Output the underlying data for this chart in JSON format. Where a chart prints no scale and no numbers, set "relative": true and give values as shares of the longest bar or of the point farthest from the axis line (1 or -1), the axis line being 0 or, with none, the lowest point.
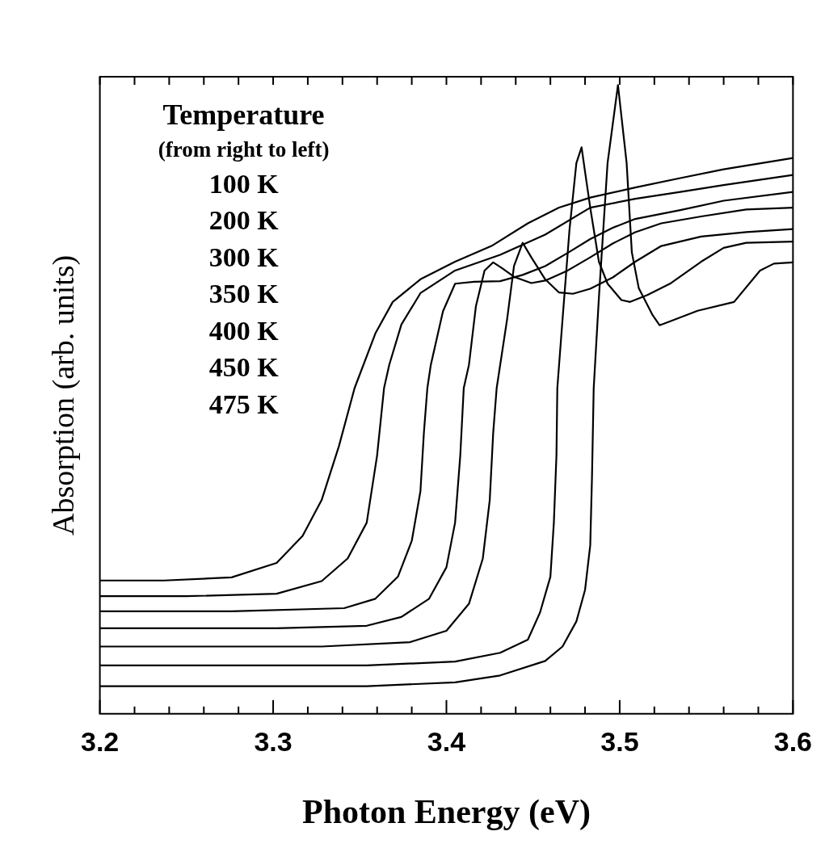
{
  "chart_data": {
    "type": "line",
    "xlabel": "Photon Energy (eV)",
    "ylabel": "Absorption (arb. units)",
    "relative": true,
    "marker": "none",
    "xlim": [
      3.2,
      3.6
    ],
    "xticks": [
      3.2,
      {
        "value": 3.22,
        "label": null
      },
      {
        "value": 3.24,
        "label": null
      },
      {
        "value": 3.26,
        "label": null
      },
      {
        "value": 3.28,
        "label": null
      },
      3.3,
      {
        "value": 3.32,
        "label": null
      },
      {
        "value": 3.34,
        "label": null
      },
      {
        "value": 3.36,
        "label": null
      },
      {
        "value": 3.38,
        "label": null
      },
      3.4,
      {
        "value": 3.42,
        "label": null
      },
      {
        "value": 3.44,
        "label": null
      },
      {
        "value": 3.46,
        "label": null
      },
      {
        "value": 3.48,
        "label": null
      },
      3.5,
      {
        "value": 3.52,
        "label": null
      },
      {
        "value": 3.54,
        "label": null
      },
      {
        "value": 3.56,
        "label": null
      },
      {
        "value": 3.58,
        "label": null
      },
      3.6
    ],
    "annotations": [
      "Temperature",
      "(from right to left)",
      "100 K",
      "200 K",
      "300 K",
      "350 K",
      "400 K",
      "450 K",
      "475 K"
    ],
    "series": [
      {
        "color": "#000000",
        "x": [
          3.2,
          3.354,
          3.405,
          3.431,
          3.457,
          3.467,
          3.475,
          3.48,
          3.483,
          3.484,
          3.485,
          3.488,
          3.493,
          3.499,
          3.504,
          3.507,
          3.511,
          3.519,
          3.523,
          3.528,
          3.545,
          3.566,
          3.581,
          3.589,
          3.6
        ],
        "values": [
          0.044,
          0.044,
          0.05,
          0.061,
          0.084,
          0.107,
          0.147,
          0.197,
          0.268,
          0.375,
          0.518,
          0.662,
          0.876,
          1.0,
          0.876,
          0.734,
          0.677,
          0.634,
          0.618,
          0.623,
          0.641,
          0.655,
          0.705,
          0.716,
          0.718
        ]
      },
      {
        "color": "#000000",
        "x": [
          3.2,
          3.354,
          3.405,
          3.431,
          3.447,
          3.454,
          3.46,
          3.462,
          3.4635,
          3.464,
          3.467,
          3.471,
          3.475,
          3.478,
          3.48,
          3.483,
          3.488,
          3.493,
          3.501,
          3.506,
          3.516,
          3.529,
          3.547,
          3.56,
          3.573,
          3.6
        ],
        "values": [
          0.077,
          0.077,
          0.083,
          0.097,
          0.118,
          0.161,
          0.218,
          0.304,
          0.411,
          0.518,
          0.627,
          0.769,
          0.876,
          0.901,
          0.862,
          0.805,
          0.719,
          0.684,
          0.658,
          0.655,
          0.666,
          0.684,
          0.719,
          0.741,
          0.749,
          0.751
        ]
      },
      {
        "color": "#000000",
        "x": [
          3.2,
          3.328,
          3.379,
          3.4,
          3.413,
          3.421,
          3.425,
          3.427,
          3.429,
          3.435,
          3.439,
          3.444,
          3.449,
          3.457,
          3.465,
          3.473,
          3.483,
          3.496,
          3.509,
          3.524,
          3.547,
          3.573,
          3.6
        ],
        "values": [
          0.107,
          0.107,
          0.114,
          0.132,
          0.175,
          0.247,
          0.34,
          0.447,
          0.518,
          0.627,
          0.712,
          0.749,
          0.726,
          0.691,
          0.67,
          0.668,
          0.676,
          0.694,
          0.719,
          0.744,
          0.759,
          0.766,
          0.771
        ]
      },
      {
        "color": "#000000",
        "x": [
          3.2,
          3.302,
          3.354,
          3.374,
          3.39,
          3.4,
          3.405,
          3.408,
          3.41,
          3.413,
          3.417,
          3.422,
          3.427,
          3.432,
          3.439,
          3.449,
          3.457,
          3.47,
          3.483,
          3.496,
          3.509,
          3.524,
          3.547,
          3.573,
          3.6
        ],
        "values": [
          0.136,
          0.136,
          0.14,
          0.154,
          0.183,
          0.233,
          0.304,
          0.411,
          0.518,
          0.555,
          0.648,
          0.705,
          0.718,
          0.709,
          0.695,
          0.685,
          0.689,
          0.705,
          0.726,
          0.748,
          0.766,
          0.78,
          0.791,
          0.802,
          0.805
        ]
      },
      {
        "color": "#000000",
        "x": [
          3.2,
          3.276,
          3.341,
          3.359,
          3.372,
          3.38,
          3.385,
          3.387,
          3.389,
          3.391,
          3.398,
          3.405,
          3.416,
          3.431,
          3.444,
          3.457,
          3.47,
          3.483,
          3.496,
          3.509,
          3.535,
          3.56,
          3.6
        ],
        "values": [
          0.163,
          0.163,
          0.168,
          0.183,
          0.218,
          0.275,
          0.354,
          0.447,
          0.518,
          0.555,
          0.64,
          0.684,
          0.687,
          0.688,
          0.698,
          0.712,
          0.733,
          0.755,
          0.773,
          0.787,
          0.801,
          0.816,
          0.83
        ]
      },
      {
        "color": "#000000",
        "x": [
          3.2,
          3.25,
          3.302,
          3.328,
          3.343,
          3.354,
          3.36,
          3.364,
          3.367,
          3.374,
          3.385,
          3.405,
          3.431,
          3.457,
          3.483,
          3.509,
          3.535,
          3.56,
          3.6
        ],
        "values": [
          0.187,
          0.187,
          0.191,
          0.211,
          0.247,
          0.304,
          0.411,
          0.518,
          0.555,
          0.619,
          0.669,
          0.705,
          0.73,
          0.762,
          0.805,
          0.819,
          0.83,
          0.841,
          0.857
        ]
      },
      {
        "color": "#000000",
        "x": [
          3.2,
          3.237,
          3.276,
          3.302,
          3.317,
          3.328,
          3.338,
          3.347,
          3.359,
          3.369,
          3.385,
          3.405,
          3.426,
          3.447,
          3.465,
          3.483,
          3.509,
          3.535,
          3.56,
          3.6
        ],
        "values": [
          0.212,
          0.212,
          0.217,
          0.24,
          0.283,
          0.34,
          0.426,
          0.518,
          0.605,
          0.655,
          0.691,
          0.719,
          0.744,
          0.78,
          0.805,
          0.821,
          0.837,
          0.852,
          0.866,
          0.884
        ]
      }
    ]
  }
}
